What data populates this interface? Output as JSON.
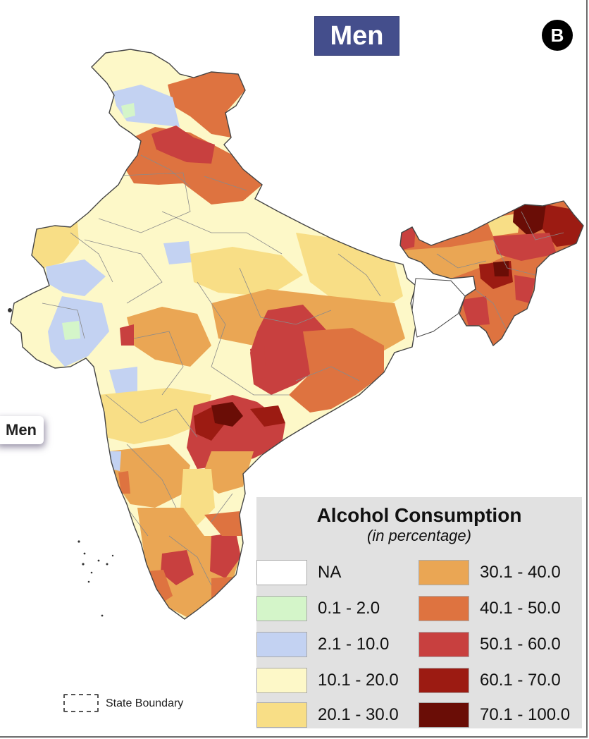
{
  "map": {
    "title": "Men",
    "panel_label": "B",
    "side_tab_label": "Men",
    "boundary_label": "State Boundary"
  },
  "legend": {
    "title": "Alcohol Consumption",
    "subtitle": "(in percentage)",
    "items": [
      {
        "label": "NA",
        "color": "#ffffff"
      },
      {
        "label": "0.1 - 2.0",
        "color": "#d4f5c9"
      },
      {
        "label": "2.1 - 10.0",
        "color": "#c3d2f2"
      },
      {
        "label": "10.1 - 20.0",
        "color": "#fdf8c8"
      },
      {
        "label": "20.1 - 30.0",
        "color": "#f8de86"
      },
      {
        "label": "30.1 - 40.0",
        "color": "#eaa654"
      },
      {
        "label": "40.1 - 50.0",
        "color": "#de7340"
      },
      {
        "label": "50.1 - 60.0",
        "color": "#c8403f"
      },
      {
        "label": "60.1 - 70.0",
        "color": "#9c1b12"
      },
      {
        "label": "70.1 - 100.0",
        "color": "#6a0d06"
      }
    ]
  }
}
